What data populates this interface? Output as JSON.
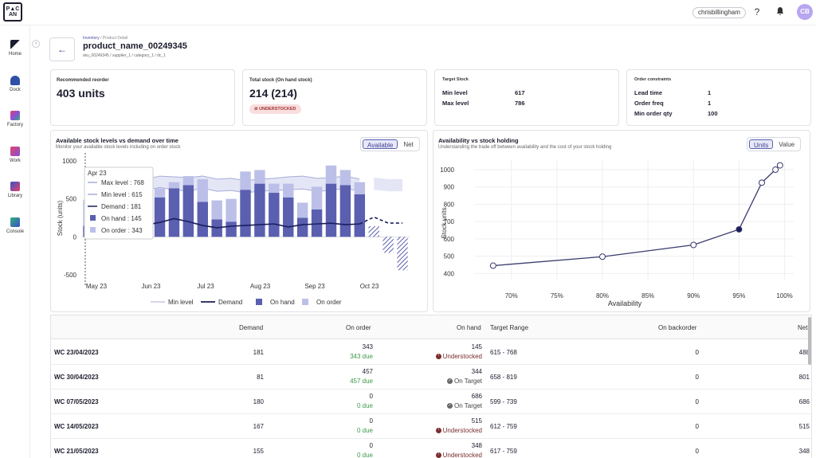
{
  "app": {
    "logo_text": "PIC\nAN"
  },
  "topbar": {
    "username": "chrisbillingham",
    "avatar_initials": "CB"
  },
  "sidebar": {
    "items": [
      {
        "label": "Home",
        "color": "#1c1d2e"
      },
      {
        "label": "Dock",
        "color": "#2f4fa8"
      },
      {
        "label": "Factory",
        "color": "#8a4fd8"
      },
      {
        "label": "Work",
        "color": "#e0436a"
      },
      {
        "label": "Library",
        "color": "#3b50c8"
      },
      {
        "label": "Console",
        "color": "#2fb07a"
      }
    ]
  },
  "breadcrumb": {
    "first": "Inventory",
    "sep": "/",
    "second": "Product Detail"
  },
  "product": {
    "title": "product_name_00249345",
    "subtitle": "sku_00249345 / supplier_1 / category_1 / dc_1"
  },
  "cards": {
    "recommended": {
      "label": "Recommended reorder",
      "value": "403 units"
    },
    "total_stock": {
      "label": "Total stock (On hand stock)",
      "value": "214 (214)",
      "badge": "UNDERSTOCKED"
    },
    "target": {
      "label": "Target Stock",
      "rows": [
        {
          "k": "Min level",
          "v": "617"
        },
        {
          "k": "Max level",
          "v": "786"
        }
      ]
    },
    "constraints": {
      "label": "Order constraints",
      "rows": [
        {
          "k": "Lead time",
          "v": "1"
        },
        {
          "k": "Order freq",
          "v": "1"
        },
        {
          "k": "Min order qty",
          "v": "100"
        }
      ]
    }
  },
  "left_chart": {
    "title": "Available stock levels vs demand over time",
    "subtitle": "Monitor your available stock levels including on order stock",
    "toggle": [
      "Available",
      "Net"
    ],
    "active": "Available",
    "ylabel": "Stock (units)",
    "tooltip": {
      "date": "Apr 23",
      "rows": [
        "Max level : 768",
        "Min level : 615",
        "Demand : 181",
        "On hand : 145",
        "On order : 343"
      ]
    },
    "legend": [
      "Min level",
      "Demand",
      "On hand",
      "On order"
    ]
  },
  "right_chart": {
    "title": "Availability vs stock holding",
    "subtitle": "Understanding the trade off between availability and the cost of your stock holding",
    "toggle": [
      "Units",
      "Value"
    ],
    "active": "Units",
    "ylabel": "Stock units",
    "xlabel": "Availability"
  },
  "chart_data": [
    {
      "type": "bar",
      "ylim": [
        -500,
        1000
      ],
      "yticks": [
        1000,
        500,
        0,
        -500
      ],
      "xticks": [
        "May 23",
        "Jun 23",
        "Jul 23",
        "Aug 23",
        "Sep 23",
        "Oct 23"
      ],
      "series": [
        {
          "name": "On hand",
          "values": [
            145,
            344,
            686,
            515,
            348,
            520,
            640,
            680,
            460,
            230,
            200,
            620,
            700,
            580,
            520,
            250,
            360,
            700,
            680,
            560,
            140,
            -210,
            -440
          ]
        },
        {
          "name": "On order",
          "values": [
            343,
            457,
            0,
            0,
            0,
            120,
            80,
            120,
            300,
            250,
            300,
            240,
            180,
            120,
            180,
            200,
            300,
            240,
            200,
            160,
            40,
            0,
            0
          ]
        },
        {
          "name": "Demand",
          "values": [
            181,
            81,
            180,
            167,
            155,
            190,
            240,
            200,
            150,
            120,
            140,
            150,
            160,
            170,
            130,
            160,
            170,
            180,
            160,
            170,
            260,
            181,
            181
          ]
        },
        {
          "name": "Min level",
          "values": [
            615,
            658,
            599,
            612,
            617,
            650,
            620,
            600,
            640,
            600,
            610,
            580,
            600,
            610,
            620,
            630,
            600,
            610,
            640,
            600,
            620,
            600,
            600
          ]
        },
        {
          "name": "Max level",
          "values": [
            768,
            819,
            739,
            759,
            759,
            800,
            790,
            780,
            800,
            760,
            770,
            740,
            760,
            770,
            790,
            800,
            770,
            780,
            800,
            760,
            780,
            760,
            760
          ]
        }
      ]
    },
    {
      "type": "line",
      "xlabel": "Availability",
      "ylabel": "Stock units",
      "xticks": [
        "70%",
        "75%",
        "80%",
        "85%",
        "90%",
        "95%",
        "100%"
      ],
      "yticks": [
        1000,
        900,
        800,
        700,
        600,
        500,
        400
      ],
      "x": [
        68,
        80,
        90,
        95,
        97.5,
        99,
        99.5
      ],
      "y": [
        445,
        497,
        565,
        655,
        925,
        1000,
        1025
      ]
    }
  ],
  "table": {
    "headers": [
      "",
      "Demand",
      "On order",
      "On hand",
      "Target Range",
      "On backorder",
      "Net"
    ],
    "rows": [
      {
        "week": "WC 23/04/2023",
        "demand": "181",
        "on_order": "343",
        "due": "343 due",
        "on_hand": "145",
        "status": "Understocked",
        "range": "615 - 768",
        "backorder": "0",
        "net": "488"
      },
      {
        "week": "WC 30/04/2023",
        "demand": "81",
        "on_order": "457",
        "due": "457 due",
        "on_hand": "344",
        "status": "On Target",
        "range": "658 - 819",
        "backorder": "0",
        "net": "801"
      },
      {
        "week": "WC 07/05/2023",
        "demand": "180",
        "on_order": "0",
        "due": "0 due",
        "on_hand": "686",
        "status": "On Target",
        "range": "599 - 739",
        "backorder": "0",
        "net": "686"
      },
      {
        "week": "WC 14/05/2023",
        "demand": "167",
        "on_order": "0",
        "due": "0 due",
        "on_hand": "515",
        "status": "Understocked",
        "range": "612 - 759",
        "backorder": "0",
        "net": "515"
      },
      {
        "week": "WC 21/05/2023",
        "demand": "155",
        "on_order": "0",
        "due": "0 due",
        "on_hand": "348",
        "status": "Understocked",
        "range": "617 - 759",
        "backorder": "0",
        "net": "348"
      }
    ]
  }
}
